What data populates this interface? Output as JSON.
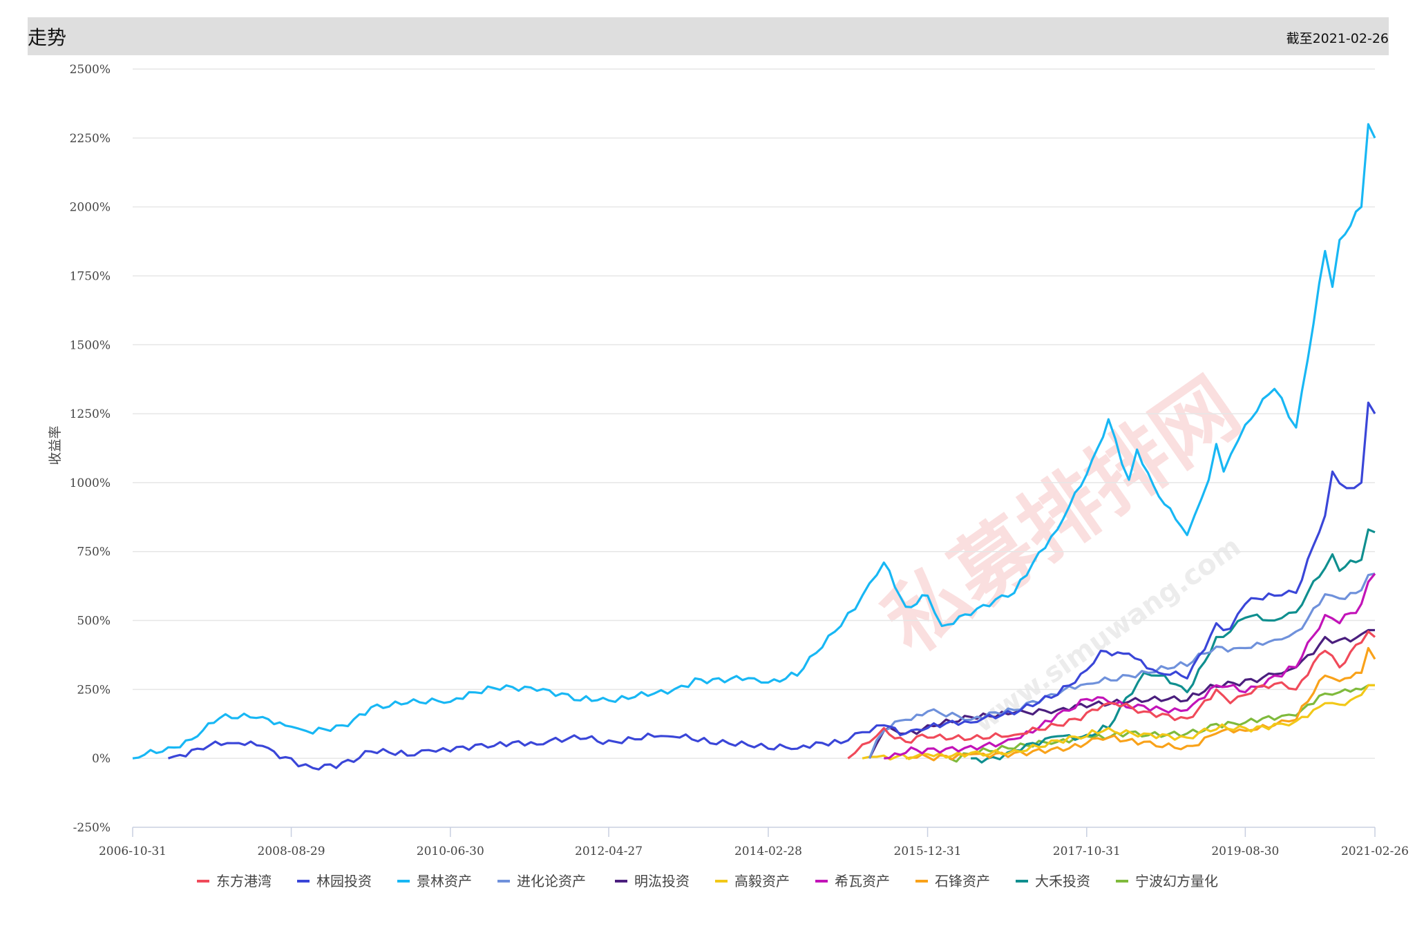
{
  "header": {
    "title": "走势",
    "date_label": "截至2021-02-26"
  },
  "watermark": {
    "main": "私募排排网",
    "sub": "www.simuwang.com"
  },
  "colors": {
    "grid": "#e6e6e6",
    "axis": "#c8cfe0",
    "header_bg": "#dedede"
  },
  "chart_data": {
    "type": "line",
    "ylabel": "收益率",
    "ylim": [
      -250,
      2500
    ],
    "yticks": [
      "2500%",
      "2250%",
      "2000%",
      "1750%",
      "1500%",
      "1250%",
      "1000%",
      "750%",
      "500%",
      "250%",
      "0%",
      "-250%"
    ],
    "xlim": [
      "2006-10-31",
      "2021-02-26"
    ],
    "xticks": [
      "2006-10-31",
      "2008-08-29",
      "2010-06-30",
      "2012-04-27",
      "2014-02-28",
      "2015-12-31",
      "2017-10-31",
      "2019-08-30",
      "2021-02-26"
    ],
    "legend_position": "bottom",
    "series": [
      {
        "name": "东方港湾",
        "color": "#f04a5a",
        "points": [
          [
            "2015-01-30",
            0
          ],
          [
            "2015-03-31",
            50
          ],
          [
            "2015-06-30",
            110
          ],
          [
            "2015-09-30",
            60
          ],
          [
            "2015-12-31",
            75
          ],
          [
            "2016-06-30",
            70
          ],
          [
            "2016-12-30",
            85
          ],
          [
            "2017-06-30",
            120
          ],
          [
            "2017-10-31",
            165
          ],
          [
            "2018-01-31",
            200
          ],
          [
            "2018-06-29",
            170
          ],
          [
            "2018-12-28",
            145
          ],
          [
            "2019-04-30",
            250
          ],
          [
            "2019-06-28",
            200
          ],
          [
            "2019-08-30",
            230
          ],
          [
            "2019-12-31",
            270
          ],
          [
            "2020-03-31",
            250
          ],
          [
            "2020-07-31",
            390
          ],
          [
            "2020-09-30",
            330
          ],
          [
            "2020-12-31",
            420
          ],
          [
            "2021-01-29",
            460
          ],
          [
            "2021-02-26",
            440
          ]
        ]
      },
      {
        "name": "林园投资",
        "color": "#3a46d8",
        "points": [
          [
            "2007-03-30",
            0
          ],
          [
            "2007-07-31",
            35
          ],
          [
            "2007-12-28",
            55
          ],
          [
            "2008-04-30",
            45
          ],
          [
            "2008-08-29",
            0
          ],
          [
            "2008-11-28",
            -35
          ],
          [
            "2009-03-31",
            -15
          ],
          [
            "2009-07-31",
            25
          ],
          [
            "2009-12-31",
            10
          ],
          [
            "2010-03-31",
            30
          ],
          [
            "2010-06-30",
            25
          ],
          [
            "2010-12-31",
            45
          ],
          [
            "2011-06-30",
            50
          ],
          [
            "2011-12-30",
            70
          ],
          [
            "2012-04-27",
            65
          ],
          [
            "2012-12-31",
            80
          ],
          [
            "2013-06-28",
            55
          ],
          [
            "2013-12-31",
            40
          ],
          [
            "2014-02-28",
            35
          ],
          [
            "2014-06-30",
            35
          ],
          [
            "2014-12-31",
            55
          ],
          [
            "2015-03-31",
            95
          ],
          [
            "2015-06-30",
            120
          ],
          [
            "2015-09-30",
            90
          ],
          [
            "2015-12-31",
            110
          ],
          [
            "2016-06-30",
            130
          ],
          [
            "2016-12-30",
            160
          ],
          [
            "2017-06-30",
            230
          ],
          [
            "2017-10-31",
            320
          ],
          [
            "2017-12-29",
            390
          ],
          [
            "2018-04-27",
            380
          ],
          [
            "2018-08-31",
            310
          ],
          [
            "2018-12-28",
            290
          ],
          [
            "2019-04-30",
            490
          ],
          [
            "2019-06-28",
            470
          ],
          [
            "2019-08-30",
            560
          ],
          [
            "2019-12-31",
            590
          ],
          [
            "2020-03-31",
            600
          ],
          [
            "2020-07-31",
            880
          ],
          [
            "2020-08-31",
            1040
          ],
          [
            "2020-10-30",
            980
          ],
          [
            "2020-12-31",
            1000
          ],
          [
            "2021-01-29",
            1290
          ],
          [
            "2021-02-26",
            1250
          ]
        ]
      },
      {
        "name": "景林资产",
        "color": "#18b7f4",
        "points": [
          [
            "2006-10-31",
            0
          ],
          [
            "2007-03-30",
            40
          ],
          [
            "2007-07-31",
            80
          ],
          [
            "2007-10-31",
            145
          ],
          [
            "2008-04-30",
            150
          ],
          [
            "2008-08-29",
            115
          ],
          [
            "2008-11-28",
            90
          ],
          [
            "2009-03-31",
            120
          ],
          [
            "2009-07-31",
            185
          ],
          [
            "2009-12-31",
            200
          ],
          [
            "2010-06-30",
            205
          ],
          [
            "2010-12-31",
            255
          ],
          [
            "2011-06-30",
            245
          ],
          [
            "2011-12-30",
            210
          ],
          [
            "2012-04-27",
            210
          ],
          [
            "2012-12-31",
            235
          ],
          [
            "2013-04-26",
            290
          ],
          [
            "2013-12-31",
            290
          ],
          [
            "2014-02-28",
            275
          ],
          [
            "2014-06-30",
            300
          ],
          [
            "2014-12-31",
            480
          ],
          [
            "2015-03-31",
            590
          ],
          [
            "2015-06-30",
            710
          ],
          [
            "2015-09-30",
            550
          ],
          [
            "2015-12-31",
            590
          ],
          [
            "2016-02-29",
            480
          ],
          [
            "2016-06-30",
            520
          ],
          [
            "2016-12-30",
            600
          ],
          [
            "2017-06-30",
            830
          ],
          [
            "2017-10-31",
            1030
          ],
          [
            "2018-01-31",
            1230
          ],
          [
            "2018-04-27",
            1010
          ],
          [
            "2018-05-31",
            1120
          ],
          [
            "2018-08-31",
            950
          ],
          [
            "2018-12-28",
            810
          ],
          [
            "2019-03-29",
            1010
          ],
          [
            "2019-04-30",
            1140
          ],
          [
            "2019-05-31",
            1040
          ],
          [
            "2019-08-30",
            1210
          ],
          [
            "2019-12-31",
            1340
          ],
          [
            "2020-03-31",
            1200
          ],
          [
            "2020-07-31",
            1840
          ],
          [
            "2020-08-31",
            1710
          ],
          [
            "2020-09-30",
            1880
          ],
          [
            "2020-12-31",
            2000
          ],
          [
            "2021-01-29",
            2300
          ],
          [
            "2021-02-26",
            2250
          ]
        ]
      },
      {
        "name": "进化论资产",
        "color": "#6f91db",
        "points": [
          [
            "2015-04-30",
            0
          ],
          [
            "2015-06-30",
            100
          ],
          [
            "2015-09-30",
            140
          ],
          [
            "2015-12-31",
            170
          ],
          [
            "2016-06-30",
            140
          ],
          [
            "2016-12-30",
            175
          ],
          [
            "2017-06-30",
            230
          ],
          [
            "2017-10-31",
            270
          ],
          [
            "2018-04-27",
            300
          ],
          [
            "2018-12-28",
            335
          ],
          [
            "2019-04-30",
            405
          ],
          [
            "2019-08-30",
            400
          ],
          [
            "2019-12-31",
            430
          ],
          [
            "2020-03-31",
            460
          ],
          [
            "2020-07-31",
            595
          ],
          [
            "2020-09-30",
            580
          ],
          [
            "2020-12-31",
            610
          ],
          [
            "2021-01-29",
            665
          ],
          [
            "2021-02-26",
            670
          ]
        ]
      },
      {
        "name": "明汯投资",
        "color": "#4b1f7e",
        "points": [
          [
            "2015-04-30",
            0
          ],
          [
            "2015-06-30",
            100
          ],
          [
            "2015-09-30",
            90
          ],
          [
            "2015-12-31",
            120
          ],
          [
            "2016-06-30",
            150
          ],
          [
            "2016-12-30",
            165
          ],
          [
            "2017-06-30",
            175
          ],
          [
            "2017-10-31",
            185
          ],
          [
            "2018-04-27",
            205
          ],
          [
            "2018-12-28",
            210
          ],
          [
            "2019-04-30",
            260
          ],
          [
            "2019-08-30",
            285
          ],
          [
            "2019-12-31",
            305
          ],
          [
            "2020-03-31",
            330
          ],
          [
            "2020-07-31",
            440
          ],
          [
            "2020-09-30",
            430
          ],
          [
            "2020-12-31",
            450
          ],
          [
            "2021-01-29",
            465
          ],
          [
            "2021-02-26",
            465
          ]
        ]
      },
      {
        "name": "高毅资产",
        "color": "#f2c818",
        "points": [
          [
            "2015-03-31",
            0
          ],
          [
            "2015-06-30",
            10
          ],
          [
            "2015-12-31",
            15
          ],
          [
            "2016-06-30",
            20
          ],
          [
            "2016-12-30",
            30
          ],
          [
            "2017-06-30",
            65
          ],
          [
            "2017-10-31",
            80
          ],
          [
            "2018-01-31",
            110
          ],
          [
            "2018-06-29",
            90
          ],
          [
            "2018-12-28",
            75
          ],
          [
            "2019-04-30",
            105
          ],
          [
            "2019-08-30",
            110
          ],
          [
            "2019-12-31",
            125
          ],
          [
            "2020-03-31",
            135
          ],
          [
            "2020-07-31",
            200
          ],
          [
            "2020-09-30",
            195
          ],
          [
            "2020-12-31",
            230
          ],
          [
            "2021-01-29",
            265
          ],
          [
            "2021-02-26",
            265
          ]
        ]
      },
      {
        "name": "希瓦资产",
        "color": "#c214b8",
        "points": [
          [
            "2015-06-30",
            0
          ],
          [
            "2015-09-30",
            20
          ],
          [
            "2015-12-31",
            35
          ],
          [
            "2016-06-30",
            45
          ],
          [
            "2016-12-30",
            70
          ],
          [
            "2017-06-30",
            160
          ],
          [
            "2017-10-31",
            215
          ],
          [
            "2018-01-31",
            205
          ],
          [
            "2018-06-29",
            190
          ],
          [
            "2018-12-28",
            175
          ],
          [
            "2019-04-30",
            265
          ],
          [
            "2019-08-30",
            240
          ],
          [
            "2019-12-31",
            300
          ],
          [
            "2020-03-31",
            330
          ],
          [
            "2020-07-31",
            520
          ],
          [
            "2020-09-30",
            490
          ],
          [
            "2020-12-31",
            560
          ],
          [
            "2021-01-29",
            640
          ],
          [
            "2021-02-26",
            670
          ]
        ]
      },
      {
        "name": "石锋资产",
        "color": "#f9a21a",
        "points": [
          [
            "2015-09-30",
            0
          ],
          [
            "2015-12-31",
            5
          ],
          [
            "2016-06-30",
            15
          ],
          [
            "2016-12-30",
            20
          ],
          [
            "2017-06-30",
            40
          ],
          [
            "2017-10-31",
            55
          ],
          [
            "2018-01-31",
            75
          ],
          [
            "2018-06-29",
            60
          ],
          [
            "2018-12-28",
            45
          ],
          [
            "2019-04-30",
            90
          ],
          [
            "2019-08-30",
            100
          ],
          [
            "2019-12-31",
            120
          ],
          [
            "2020-03-31",
            140
          ],
          [
            "2020-07-31",
            300
          ],
          [
            "2020-09-30",
            280
          ],
          [
            "2020-12-31",
            310
          ],
          [
            "2021-01-29",
            400
          ],
          [
            "2021-02-26",
            360
          ]
        ]
      },
      {
        "name": "大禾投资",
        "color": "#0f8f8f",
        "points": [
          [
            "2016-06-30",
            0
          ],
          [
            "2016-09-30",
            5
          ],
          [
            "2016-12-30",
            30
          ],
          [
            "2017-06-30",
            80
          ],
          [
            "2017-10-31",
            85
          ],
          [
            "2018-01-31",
            110
          ],
          [
            "2018-06-29",
            310
          ],
          [
            "2018-08-31",
            300
          ],
          [
            "2018-12-28",
            240
          ],
          [
            "2019-04-30",
            440
          ],
          [
            "2019-06-28",
            460
          ],
          [
            "2019-08-30",
            510
          ],
          [
            "2019-12-31",
            500
          ],
          [
            "2020-03-31",
            530
          ],
          [
            "2020-07-31",
            690
          ],
          [
            "2020-08-31",
            740
          ],
          [
            "2020-09-30",
            680
          ],
          [
            "2020-12-31",
            720
          ],
          [
            "2021-01-29",
            830
          ],
          [
            "2021-02-26",
            820
          ]
        ]
      },
      {
        "name": "宁波幻方量化",
        "color": "#7fba3c",
        "points": [
          [
            "2016-03-31",
            0
          ],
          [
            "2016-06-30",
            15
          ],
          [
            "2016-12-30",
            35
          ],
          [
            "2017-06-30",
            60
          ],
          [
            "2017-10-31",
            80
          ],
          [
            "2018-04-27",
            95
          ],
          [
            "2018-12-28",
            90
          ],
          [
            "2019-04-30",
            125
          ],
          [
            "2019-08-30",
            130
          ],
          [
            "2019-12-31",
            140
          ],
          [
            "2020-03-31",
            155
          ],
          [
            "2020-07-31",
            235
          ],
          [
            "2020-09-30",
            240
          ],
          [
            "2020-12-31",
            250
          ],
          [
            "2021-01-29",
            265
          ],
          [
            "2021-02-26",
            265
          ]
        ]
      }
    ]
  }
}
